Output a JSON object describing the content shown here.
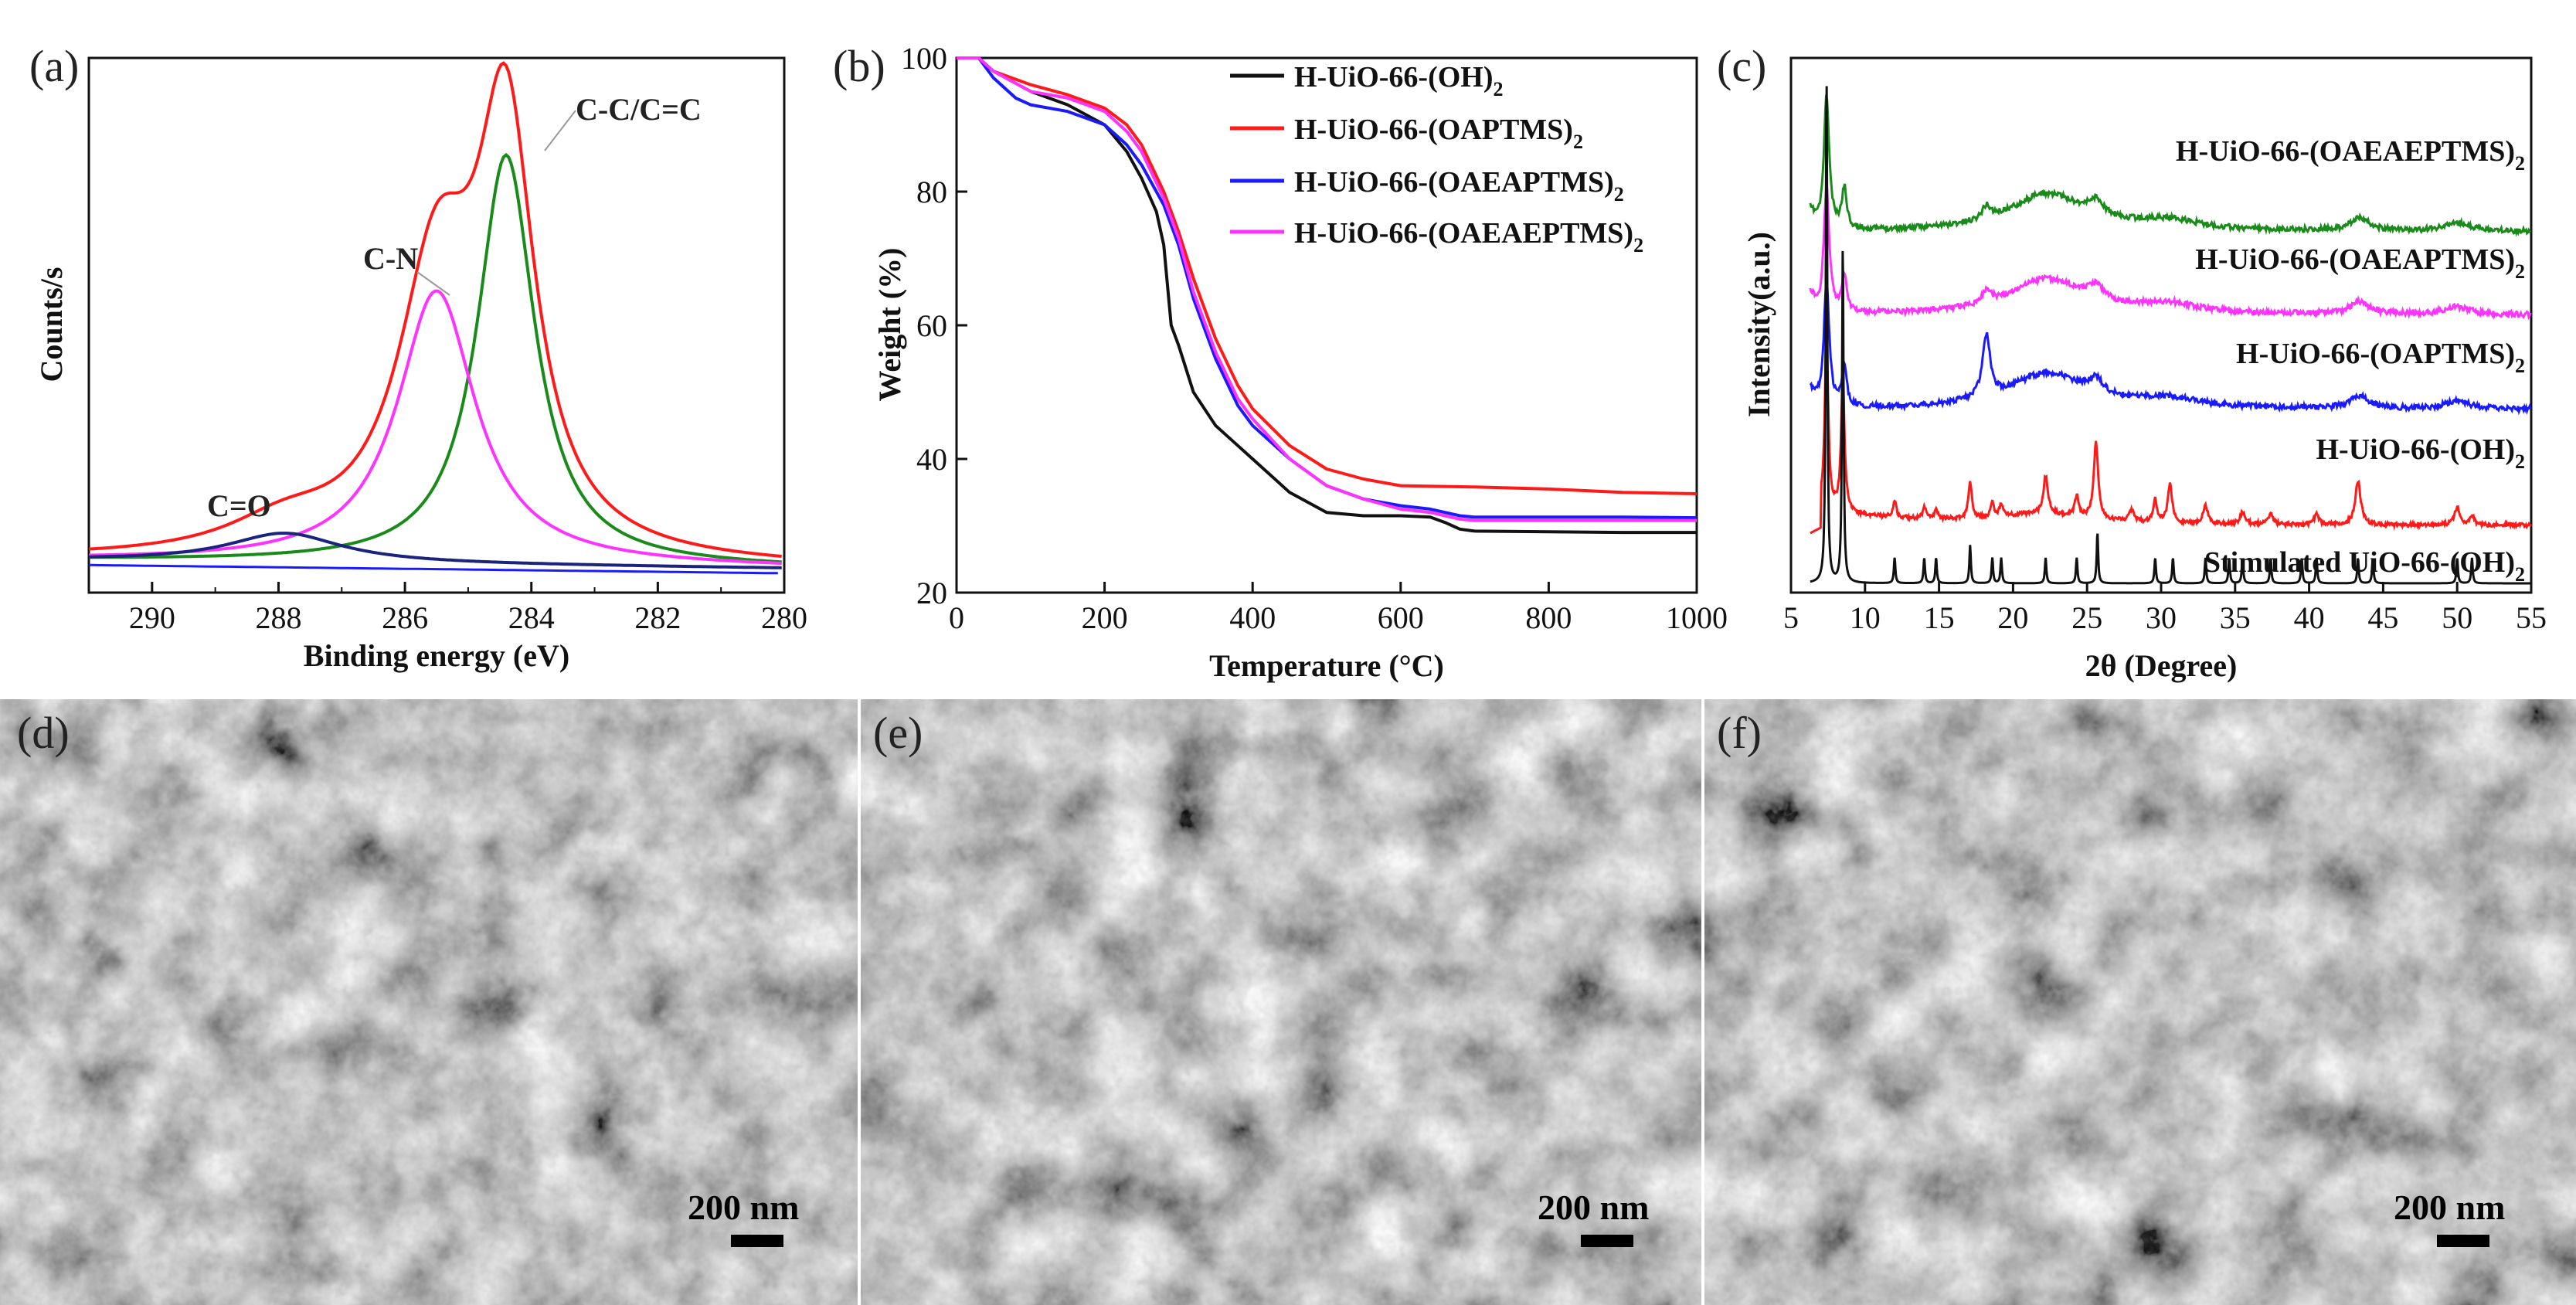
{
  "colors": {
    "black": "#111111",
    "red": "#ff1a1a",
    "blue": "#1a1aff",
    "magenta": "#ff33ff",
    "green": "#1a8a1a",
    "navy": "#1a237e"
  },
  "chart_data": [
    {
      "id": "a",
      "label": "(a)",
      "type": "line",
      "xlabel": "Binding energy (eV)",
      "ylabel": "Counts/s",
      "xlim": [
        291,
        280
      ],
      "xreversed": true,
      "xticks": [
        "290",
        "288",
        "286",
        "284",
        "282",
        "280"
      ],
      "annotations": [
        "C-C/C=C",
        "C-N",
        "C=O"
      ],
      "series": [
        {
          "name": "envelope",
          "color": "#ff1a1a"
        },
        {
          "name": "C-C/C=C",
          "color": "#1a8a1a",
          "center": 284.4,
          "height": 0.84,
          "width": 0.55
        },
        {
          "name": "C-N",
          "color": "#ff33ff",
          "center": 285.5,
          "height": 0.56,
          "width": 0.75
        },
        {
          "name": "C=O",
          "color": "#1a237e",
          "center": 287.9,
          "height": 0.06,
          "width": 1.1
        },
        {
          "name": "background",
          "color": "#1a1aff"
        }
      ]
    },
    {
      "id": "b",
      "label": "(b)",
      "type": "line",
      "xlabel": "Temperature (°C)",
      "ylabel": "Weight (%)",
      "xlim": [
        0,
        1000
      ],
      "ylim": [
        20,
        100
      ],
      "xticks": [
        "0",
        "200",
        "400",
        "600",
        "800",
        "1000"
      ],
      "yticks": [
        "20",
        "40",
        "60",
        "80",
        "100"
      ],
      "legend": [
        "H-UiO-66-(OH)",
        "H-UiO-66-(OAPTMS)",
        "H-UiO-66-(OAEAPTMS)",
        "H-UiO-66-(OAEAEPTMS)"
      ],
      "legend_sub": "2",
      "series": [
        {
          "name": "H-UiO-66-(OH)2",
          "color": "#111111",
          "x": [
            0,
            30,
            50,
            100,
            150,
            200,
            230,
            250,
            270,
            280,
            290,
            300,
            320,
            350,
            380,
            400,
            450,
            500,
            550,
            600,
            640,
            660,
            680,
            700,
            800,
            900,
            1000
          ],
          "y": [
            100,
            100,
            98,
            95,
            93,
            90,
            86,
            82,
            77,
            72,
            60,
            57,
            50,
            45,
            42,
            40,
            35,
            32,
            31.5,
            31.5,
            31.3,
            30.5,
            29.5,
            29.2,
            29.1,
            29,
            29
          ]
        },
        {
          "name": "H-UiO-66-(OAPTMS)2",
          "color": "#ff1a1a",
          "x": [
            0,
            30,
            50,
            100,
            150,
            200,
            230,
            250,
            280,
            300,
            320,
            350,
            380,
            400,
            450,
            500,
            550,
            600,
            700,
            800,
            900,
            1000
          ],
          "y": [
            100,
            100,
            98,
            96,
            94.5,
            92.5,
            90,
            87,
            80,
            74,
            67,
            58,
            51,
            47.5,
            42,
            38.5,
            37,
            36,
            35.8,
            35.5,
            35,
            34.8
          ]
        },
        {
          "name": "H-UiO-66-(OAEAPTMS)2",
          "color": "#1a1aff",
          "x": [
            0,
            30,
            50,
            80,
            100,
            150,
            200,
            230,
            250,
            280,
            300,
            320,
            350,
            380,
            400,
            450,
            500,
            550,
            600,
            640,
            660,
            680,
            700,
            800,
            900,
            1000
          ],
          "y": [
            100,
            100,
            97,
            94,
            93,
            92,
            90,
            87,
            84,
            78,
            72,
            64,
            55,
            48,
            45,
            40,
            36,
            34,
            33,
            32.5,
            32,
            31.5,
            31.3,
            31.3,
            31.3,
            31.2
          ]
        },
        {
          "name": "H-UiO-66-(OAEAEPTMS)2",
          "color": "#ff33ff",
          "x": [
            0,
            30,
            50,
            100,
            150,
            200,
            230,
            250,
            280,
            300,
            320,
            350,
            380,
            400,
            450,
            500,
            550,
            600,
            640,
            660,
            680,
            700,
            800,
            900,
            1000
          ],
          "y": [
            100,
            100,
            98,
            95,
            94,
            92,
            89,
            86,
            79,
            73,
            65,
            56,
            49,
            46,
            40,
            36,
            34,
            32.5,
            32,
            31.5,
            31,
            30.8,
            30.8,
            30.8,
            30.8
          ]
        }
      ]
    },
    {
      "id": "c",
      "label": "(c)",
      "type": "line",
      "xlabel": "2θ (Degree)",
      "ylabel": "Intensity(a.u.)",
      "xlim": [
        5,
        55
      ],
      "xticks": [
        "5",
        "10",
        "15",
        "20",
        "25",
        "30",
        "35",
        "40",
        "45",
        "50",
        "55"
      ],
      "curve_labels": [
        {
          "text": "H-UiO-66-(OAEAEPTMS)",
          "sub": "2"
        },
        {
          "text": "H-UiO-66-(OAEAPTMS)",
          "sub": "2"
        },
        {
          "text": "H-UiO-66-(OAPTMS)",
          "sub": "2"
        },
        {
          "text": "H-UiO-66-(OH)",
          "sub": "2"
        },
        {
          "text": "Stimulated UiO-66-(OH)",
          "sub": "2"
        }
      ],
      "series": [
        {
          "name": "H-UiO-66-(OAEAEPTMS)2",
          "color": "#1a8a1a"
        },
        {
          "name": "H-UiO-66-(OAEAPTMS)2",
          "color": "#ff33ff"
        },
        {
          "name": "H-UiO-66-(OAPTMS)2",
          "color": "#1a1aff"
        },
        {
          "name": "H-UiO-66-(OH)2",
          "color": "#ff1a1a"
        },
        {
          "name": "Stimulated UiO-66-(OH)2",
          "color": "#111111"
        }
      ],
      "sim_peaks": [
        7.4,
        8.5,
        12.0,
        14.0,
        14.8,
        17.1,
        18.6,
        19.2,
        22.2,
        24.3,
        25.7,
        29.6,
        30.8,
        33.0,
        34.6,
        35.5,
        37.4,
        39.5,
        40.5,
        43.3,
        44.3,
        50.0,
        51.0
      ]
    }
  ],
  "micrographs": [
    {
      "id": "d",
      "label": "(d)",
      "scale_bar": "200 nm"
    },
    {
      "id": "e",
      "label": "(e)",
      "scale_bar": "200 nm"
    },
    {
      "id": "f",
      "label": "(f)",
      "scale_bar": "200 nm"
    }
  ]
}
